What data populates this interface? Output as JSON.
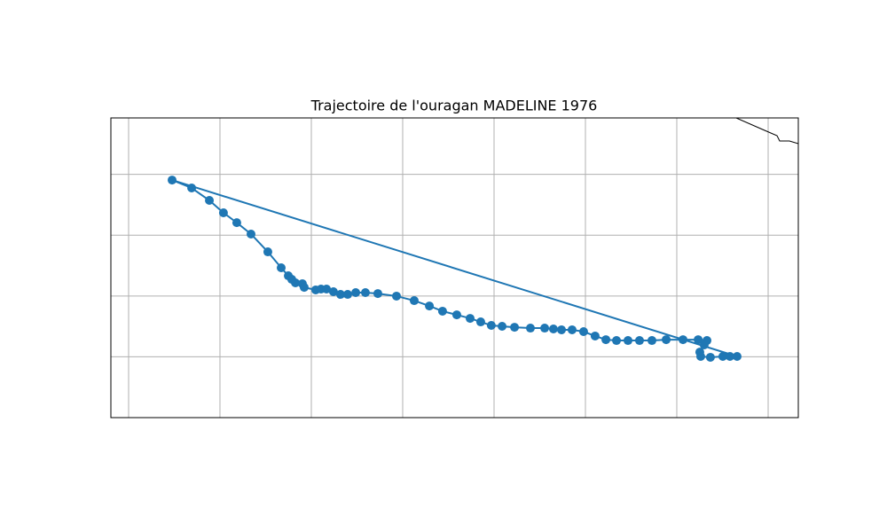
{
  "chart_data": {
    "type": "map-track",
    "title": "Trajectoire de l'ouragan MADELINE 1976",
    "color": "#1f77b4",
    "grid": true,
    "xlim": [
      -135.97,
      -98.35
    ],
    "ylim": [
      0,
      24.64
    ],
    "xticks": [
      -135,
      -130,
      -125,
      -120,
      -115,
      -110,
      -105,
      -100
    ],
    "yticks": [
      5,
      10,
      15,
      20
    ],
    "x": [
      -101.7,
      -132.62,
      -131.55,
      -130.58,
      -129.81,
      -129.08,
      -128.3,
      -127.38,
      -126.65,
      -126.26,
      -126.07,
      -125.87,
      -125.49,
      -125.39,
      -124.76,
      -124.47,
      -124.17,
      -123.79,
      -123.4,
      -123.01,
      -122.57,
      -122.04,
      -121.36,
      -120.34,
      -119.37,
      -118.54,
      -117.82,
      -117.04,
      -116.31,
      -115.73,
      -115.15,
      -114.56,
      -113.88,
      -113.01,
      -112.23,
      -111.75,
      -111.31,
      -110.73,
      -110.1,
      -109.47,
      -108.88,
      -108.3,
      -107.67,
      -107.04,
      -106.36,
      -105.58,
      -104.66,
      -103.83,
      -103.35,
      -103.5,
      -103.74,
      -103.69,
      -103.16,
      -102.48,
      -102.09
    ],
    "values": [
      5.03,
      19.53,
      18.88,
      17.86,
      16.84,
      16.03,
      15.09,
      13.63,
      12.32,
      11.66,
      11.37,
      11.08,
      11.01,
      10.71,
      10.5,
      10.57,
      10.57,
      10.35,
      10.13,
      10.13,
      10.28,
      10.28,
      10.2,
      9.99,
      9.62,
      9.18,
      8.75,
      8.45,
      8.16,
      7.87,
      7.58,
      7.51,
      7.43,
      7.36,
      7.36,
      7.29,
      7.22,
      7.22,
      7.07,
      6.71,
      6.41,
      6.34,
      6.34,
      6.34,
      6.34,
      6.41,
      6.41,
      6.41,
      6.34,
      5.98,
      5.39,
      5.03,
      4.96,
      5.03,
      5.03
    ]
  }
}
